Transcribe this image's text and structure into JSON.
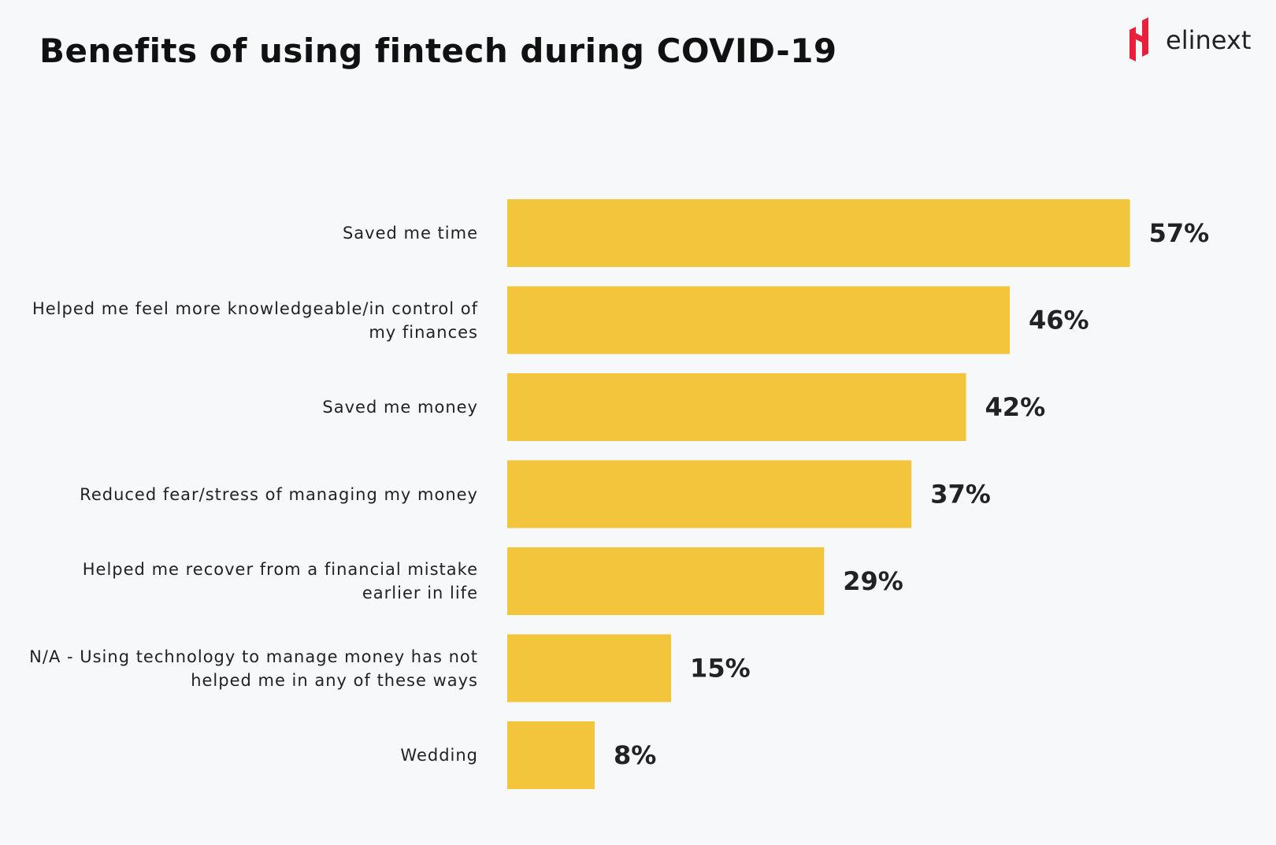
{
  "chart_data": {
    "type": "bar",
    "orientation": "horizontal",
    "title": "Benefits of using fintech during COVID-19",
    "categories": [
      "Saved me time",
      "Helped me feel more knowledgeable/in control of my finances",
      "Saved me money",
      "Reduced fear/stress of managing my money",
      "Helped me recover from a financial mistake earlier in life",
      "N/A - Using technology to manage money has not helped me in any of these ways",
      "Wedding"
    ],
    "values": [
      57,
      46,
      42,
      37,
      29,
      15,
      8
    ],
    "value_labels": [
      "57%",
      "46%",
      "42%",
      "37%",
      "29%",
      "15%",
      "8%"
    ],
    "color": "#f2c53d"
  },
  "logo": "elinext"
}
